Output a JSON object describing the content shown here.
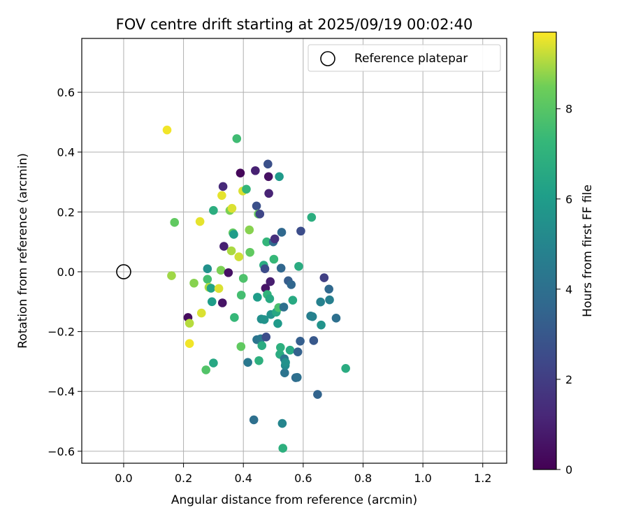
{
  "chart_data": {
    "type": "scatter",
    "title": "FOV centre drift starting at 2025/09/19 00:02:40",
    "xlabel": "Angular distance from reference (arcmin)",
    "ylabel": "Rotation from reference (arcmin)",
    "xlim": [
      -0.14,
      1.28
    ],
    "ylim": [
      -0.64,
      0.78
    ],
    "xticks": [
      0.0,
      0.2,
      0.4,
      0.6,
      0.8,
      1.0,
      1.2
    ],
    "xtick_labels": [
      "0.0",
      "0.2",
      "0.4",
      "0.6",
      "0.8",
      "1.0",
      "1.2"
    ],
    "yticks": [
      -0.6,
      -0.4,
      -0.2,
      0.0,
      0.2,
      0.4,
      0.6
    ],
    "ytick_labels": [
      "−0.6",
      "−0.4",
      "−0.2",
      "0.0",
      "0.2",
      "0.4",
      "0.6"
    ],
    "grid": true,
    "legend": {
      "position": "top-right",
      "label": "Reference platepar"
    },
    "reference": {
      "x": 0.0,
      "y": 0.0
    },
    "colorbar": {
      "label": "Hours from first FF file",
      "range": [
        0,
        9.7
      ],
      "ticks": [
        0,
        2,
        4,
        6,
        8
      ],
      "tick_labels": [
        "0",
        "2",
        "4",
        "6",
        "8"
      ],
      "colormap": "viridis"
    },
    "points": [
      {
        "x": 0.145,
        "y": 0.474,
        "h": 9.6
      },
      {
        "x": 0.17,
        "y": 0.165,
        "h": 8.2
      },
      {
        "x": 0.16,
        "y": -0.013,
        "h": 8.9
      },
      {
        "x": 0.215,
        "y": -0.153,
        "h": 0.3
      },
      {
        "x": 0.22,
        "y": -0.172,
        "h": 9.1
      },
      {
        "x": 0.22,
        "y": -0.24,
        "h": 9.6
      },
      {
        "x": 0.235,
        "y": -0.038,
        "h": 8.7
      },
      {
        "x": 0.255,
        "y": 0.168,
        "h": 9.5
      },
      {
        "x": 0.26,
        "y": -0.138,
        "h": 9.4
      },
      {
        "x": 0.275,
        "y": -0.328,
        "h": 7.9
      },
      {
        "x": 0.28,
        "y": 0.01,
        "h": 5.5
      },
      {
        "x": 0.28,
        "y": -0.025,
        "h": 7.6
      },
      {
        "x": 0.285,
        "y": -0.052,
        "h": 9.0
      },
      {
        "x": 0.292,
        "y": -0.055,
        "h": 6.3
      },
      {
        "x": 0.295,
        "y": -0.1,
        "h": 6.0
      },
      {
        "x": 0.3,
        "y": -0.305,
        "h": 6.5
      },
      {
        "x": 0.3,
        "y": 0.205,
        "h": 6.8
      },
      {
        "x": 0.318,
        "y": -0.056,
        "h": 9.4
      },
      {
        "x": 0.325,
        "y": 0.005,
        "h": 8.6
      },
      {
        "x": 0.328,
        "y": 0.255,
        "h": 9.5
      },
      {
        "x": 0.33,
        "y": -0.104,
        "h": 0.6
      },
      {
        "x": 0.332,
        "y": 0.285,
        "h": 1.3
      },
      {
        "x": 0.335,
        "y": 0.085,
        "h": 1.0
      },
      {
        "x": 0.35,
        "y": -0.003,
        "h": 0.5
      },
      {
        "x": 0.355,
        "y": 0.205,
        "h": 8.6
      },
      {
        "x": 0.36,
        "y": 0.07,
        "h": 9.0
      },
      {
        "x": 0.362,
        "y": 0.212,
        "h": 9.4
      },
      {
        "x": 0.365,
        "y": 0.13,
        "h": 8.2
      },
      {
        "x": 0.368,
        "y": 0.125,
        "h": 6.0
      },
      {
        "x": 0.37,
        "y": -0.153,
        "h": 7.3
      },
      {
        "x": 0.378,
        "y": 0.445,
        "h": 7.5
      },
      {
        "x": 0.385,
        "y": 0.05,
        "h": 9.3
      },
      {
        "x": 0.39,
        "y": 0.33,
        "h": 0.2
      },
      {
        "x": 0.392,
        "y": -0.25,
        "h": 8.2
      },
      {
        "x": 0.393,
        "y": -0.078,
        "h": 7.6
      },
      {
        "x": 0.398,
        "y": 0.27,
        "h": 9.4
      },
      {
        "x": 0.4,
        "y": -0.022,
        "h": 7.8
      },
      {
        "x": 0.41,
        "y": 0.276,
        "h": 7.2
      },
      {
        "x": 0.415,
        "y": -0.303,
        "h": 4.4
      },
      {
        "x": 0.42,
        "y": 0.14,
        "h": 8.7
      },
      {
        "x": 0.422,
        "y": 0.065,
        "h": 8.2
      },
      {
        "x": 0.435,
        "y": -0.495,
        "h": 4.0
      },
      {
        "x": 0.44,
        "y": 0.338,
        "h": 1.0
      },
      {
        "x": 0.444,
        "y": 0.22,
        "h": 2.7
      },
      {
        "x": 0.445,
        "y": -0.227,
        "h": 4.2
      },
      {
        "x": 0.447,
        "y": -0.085,
        "h": 6.0
      },
      {
        "x": 0.45,
        "y": 0.193,
        "h": 8.3
      },
      {
        "x": 0.452,
        "y": -0.297,
        "h": 6.9
      },
      {
        "x": 0.455,
        "y": 0.193,
        "h": 2.3
      },
      {
        "x": 0.458,
        "y": -0.224,
        "h": 4.4
      },
      {
        "x": 0.46,
        "y": -0.158,
        "h": 5.4
      },
      {
        "x": 0.462,
        "y": -0.247,
        "h": 6.7
      },
      {
        "x": 0.468,
        "y": 0.022,
        "h": 6.7
      },
      {
        "x": 0.47,
        "y": -0.16,
        "h": 5.6
      },
      {
        "x": 0.472,
        "y": 0.01,
        "h": 2.5
      },
      {
        "x": 0.474,
        "y": -0.055,
        "h": 0.6
      },
      {
        "x": 0.476,
        "y": -0.218,
        "h": 2.6
      },
      {
        "x": 0.478,
        "y": 0.1,
        "h": 7.2
      },
      {
        "x": 0.48,
        "y": -0.076,
        "h": 7.1
      },
      {
        "x": 0.482,
        "y": 0.36,
        "h": 2.7
      },
      {
        "x": 0.484,
        "y": 0.318,
        "h": 0.5
      },
      {
        "x": 0.485,
        "y": 0.262,
        "h": 1.1
      },
      {
        "x": 0.488,
        "y": -0.09,
        "h": 6.6
      },
      {
        "x": 0.49,
        "y": -0.033,
        "h": 0.9
      },
      {
        "x": 0.492,
        "y": -0.143,
        "h": 5.6
      },
      {
        "x": 0.5,
        "y": 0.1,
        "h": 3.8
      },
      {
        "x": 0.502,
        "y": 0.042,
        "h": 7.3
      },
      {
        "x": 0.505,
        "y": 0.11,
        "h": 1.5
      },
      {
        "x": 0.51,
        "y": -0.135,
        "h": 6.5
      },
      {
        "x": 0.515,
        "y": -0.173,
        "h": 5.9
      },
      {
        "x": 0.518,
        "y": -0.12,
        "h": 7.7
      },
      {
        "x": 0.52,
        "y": 0.318,
        "h": 5.9
      },
      {
        "x": 0.522,
        "y": -0.276,
        "h": 6.7
      },
      {
        "x": 0.524,
        "y": -0.253,
        "h": 6.9
      },
      {
        "x": 0.526,
        "y": 0.012,
        "h": 3.6
      },
      {
        "x": 0.528,
        "y": 0.132,
        "h": 3.7
      },
      {
        "x": 0.53,
        "y": -0.507,
        "h": 5.0
      },
      {
        "x": 0.532,
        "y": -0.59,
        "h": 6.9
      },
      {
        "x": 0.535,
        "y": -0.118,
        "h": 4.0
      },
      {
        "x": 0.537,
        "y": -0.291,
        "h": 4.3
      },
      {
        "x": 0.538,
        "y": -0.338,
        "h": 4.2
      },
      {
        "x": 0.54,
        "y": -0.313,
        "h": 5.2
      },
      {
        "x": 0.541,
        "y": -0.303,
        "h": 5.5
      },
      {
        "x": 0.55,
        "y": -0.03,
        "h": 3.2
      },
      {
        "x": 0.556,
        "y": -0.262,
        "h": 6.6
      },
      {
        "x": 0.56,
        "y": -0.043,
        "h": 3.6
      },
      {
        "x": 0.565,
        "y": -0.095,
        "h": 6.6
      },
      {
        "x": 0.575,
        "y": -0.354,
        "h": 3.8
      },
      {
        "x": 0.58,
        "y": -0.353,
        "h": 4.0
      },
      {
        "x": 0.582,
        "y": -0.268,
        "h": 3.4
      },
      {
        "x": 0.585,
        "y": 0.018,
        "h": 6.7
      },
      {
        "x": 0.59,
        "y": -0.232,
        "h": 3.3
      },
      {
        "x": 0.592,
        "y": 0.136,
        "h": 2.6
      },
      {
        "x": 0.625,
        "y": -0.148,
        "h": 4.6
      },
      {
        "x": 0.628,
        "y": 0.182,
        "h": 6.8
      },
      {
        "x": 0.631,
        "y": -0.15,
        "h": 4.8
      },
      {
        "x": 0.635,
        "y": -0.23,
        "h": 3.0
      },
      {
        "x": 0.648,
        "y": -0.41,
        "h": 3.5
      },
      {
        "x": 0.658,
        "y": -0.101,
        "h": 4.8
      },
      {
        "x": 0.66,
        "y": -0.178,
        "h": 5.6
      },
      {
        "x": 0.67,
        "y": -0.02,
        "h": 2.1
      },
      {
        "x": 0.686,
        "y": -0.058,
        "h": 3.7
      },
      {
        "x": 0.688,
        "y": -0.094,
        "h": 4.7
      },
      {
        "x": 0.71,
        "y": -0.155,
        "h": 4.0
      },
      {
        "x": 0.742,
        "y": -0.323,
        "h": 6.7
      }
    ]
  }
}
